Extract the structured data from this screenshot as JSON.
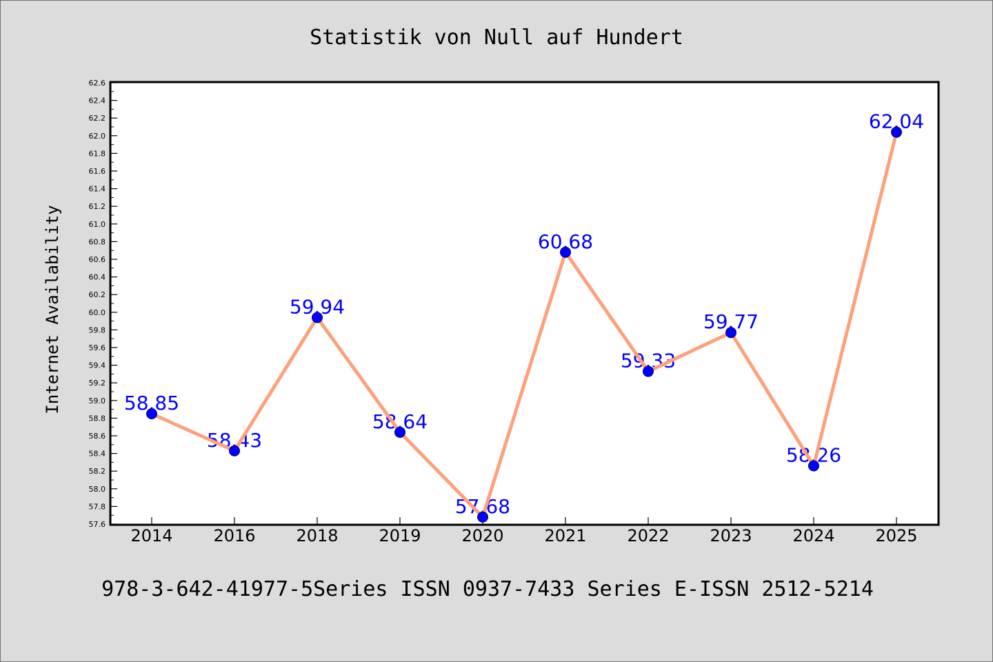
{
  "page": {
    "background": "#dcdcdc"
  },
  "chart_data": {
    "type": "line",
    "title": "Statistik von Null auf Hundert",
    "ylabel": "Internet Availability",
    "categories": [
      "2014",
      "2016",
      "2018",
      "2019",
      "2020",
      "2021",
      "2022",
      "2023",
      "2024",
      "2025"
    ],
    "series": [
      {
        "values": [
          58.85,
          58.43,
          59.94,
          58.64,
          57.68,
          60.68,
          59.33,
          59.77,
          58.26,
          62.04
        ],
        "color": "#ffa07a",
        "marker_color": "#0000ff"
      }
    ],
    "data_labels": [
      "58.85",
      "58.43",
      "59.94",
      "58.64",
      "57.68",
      "60.68",
      "59.33",
      "59.77",
      "58.26",
      "62.04"
    ],
    "label_color": "#0000ff",
    "ylim": [
      57.6,
      62.6
    ],
    "yticks": [
      "57.6",
      "57.8",
      "58.0",
      "58.2",
      "58.4",
      "58.6",
      "58.8",
      "59.0",
      "59.2",
      "59.4",
      "59.6",
      "59.8",
      "60.0",
      "60.2",
      "60.4",
      "60.6",
      "60.8",
      "61.0",
      "61.2",
      "61.4",
      "61.6",
      "61.8",
      "62.0",
      "62.2",
      "62.4",
      "62.6"
    ],
    "grid": false,
    "plot_background": "#ffffff"
  },
  "footer": {
    "text": "978-3-642-41977-5Series ISSN 0937-7433 Series E-ISSN 2512-5214"
  }
}
